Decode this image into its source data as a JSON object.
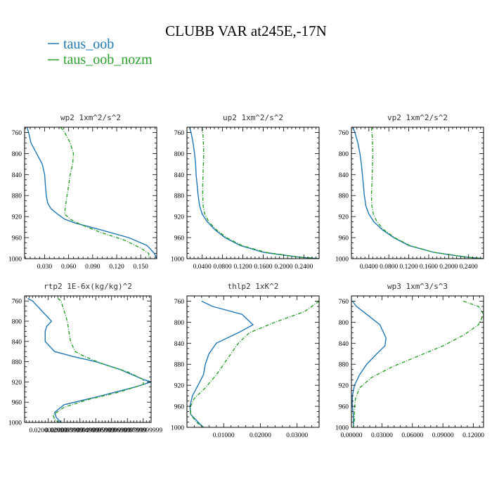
{
  "figure": {
    "title": "CLUBB VAR at245E,-17N",
    "legend": [
      {
        "name": "taus_oob",
        "color": "#1f77b4",
        "dash": "solid"
      },
      {
        "name": "taus_oob_nozm",
        "color": "#2ca02c",
        "dash": "dashdot"
      }
    ],
    "legend_placement": "top-left"
  },
  "chart_data": [
    {
      "type": "line",
      "title": "wp2  1xm^2/s^2",
      "xlim": [
        0.005,
        0.17
      ],
      "ylim": [
        1000,
        750
      ],
      "yticks": [
        760,
        800,
        840,
        880,
        920,
        960,
        1000
      ],
      "xticks": [
        0.03,
        0.06,
        0.09,
        0.12,
        0.15
      ],
      "xtick_labels": [
        "0.030",
        "0.060",
        "0.090",
        "0.120",
        "0.150"
      ],
      "series": [
        {
          "name": "taus_oob",
          "points": [
            [
              0.008,
              750
            ],
            [
              0.01,
              760
            ],
            [
              0.013,
              780
            ],
            [
              0.02,
              800
            ],
            [
              0.027,
              820
            ],
            [
              0.03,
              840
            ],
            [
              0.031,
              860
            ],
            [
              0.032,
              880
            ],
            [
              0.034,
              895
            ],
            [
              0.038,
              905
            ],
            [
              0.046,
              915
            ],
            [
              0.055,
              925
            ],
            [
              0.07,
              933
            ],
            [
              0.1,
              945
            ],
            [
              0.135,
              960
            ],
            [
              0.158,
              975
            ],
            [
              0.167,
              990
            ],
            [
              0.17,
              1000
            ]
          ]
        },
        {
          "name": "taus_oob_nozm",
          "points": [
            [
              0.05,
              750
            ],
            [
              0.055,
              760
            ],
            [
              0.062,
              780
            ],
            [
              0.066,
              800
            ],
            [
              0.065,
              820
            ],
            [
              0.062,
              840
            ],
            [
              0.06,
              860
            ],
            [
              0.058,
              880
            ],
            [
              0.056,
              900
            ],
            [
              0.055,
              915
            ],
            [
              0.062,
              925
            ],
            [
              0.075,
              935
            ],
            [
              0.1,
              950
            ],
            [
              0.13,
              965
            ],
            [
              0.15,
              980
            ],
            [
              0.16,
              990
            ],
            [
              0.16,
              1000
            ]
          ]
        }
      ]
    },
    {
      "type": "line",
      "title": "up2  1xm^2/s^2",
      "xlim": [
        0.01,
        0.27
      ],
      "ylim": [
        1000,
        750
      ],
      "yticks": [
        760,
        800,
        840,
        880,
        920,
        960,
        1000
      ],
      "xticks": [
        0.04,
        0.08,
        0.12,
        0.16,
        0.2,
        0.24
      ],
      "xtick_labels": [
        "0.0400",
        "0.0800",
        "0.1200",
        "0.1600",
        "0.2000",
        "0.2400"
      ],
      "series": [
        {
          "name": "taus_oob",
          "points": [
            [
              0.015,
              750
            ],
            [
              0.018,
              760
            ],
            [
              0.022,
              780
            ],
            [
              0.025,
              800
            ],
            [
              0.027,
              820
            ],
            [
              0.028,
              840
            ],
            [
              0.03,
              860
            ],
            [
              0.032,
              880
            ],
            [
              0.035,
              900
            ],
            [
              0.04,
              915
            ],
            [
              0.05,
              930
            ],
            [
              0.065,
              945
            ],
            [
              0.085,
              960
            ],
            [
              0.115,
              975
            ],
            [
              0.16,
              988
            ],
            [
              0.23,
              997
            ],
            [
              0.27,
              1000
            ]
          ]
        },
        {
          "name": "taus_oob_nozm",
          "points": [
            [
              0.04,
              750
            ],
            [
              0.042,
              770
            ],
            [
              0.043,
              800
            ],
            [
              0.042,
              830
            ],
            [
              0.041,
              860
            ],
            [
              0.041,
              880
            ],
            [
              0.042,
              900
            ],
            [
              0.045,
              915
            ],
            [
              0.053,
              930
            ],
            [
              0.068,
              945
            ],
            [
              0.088,
              960
            ],
            [
              0.118,
              975
            ],
            [
              0.165,
              988
            ],
            [
              0.23,
              997
            ],
            [
              0.27,
              1000
            ]
          ]
        }
      ]
    },
    {
      "type": "line",
      "title": "vp2  1xm^2/s^2",
      "xlim": [
        0.005,
        0.27
      ],
      "ylim": [
        1000,
        750
      ],
      "yticks": [
        760,
        800,
        840,
        880,
        920,
        960,
        1000
      ],
      "xticks": [
        0.04,
        0.08,
        0.12,
        0.16,
        0.2,
        0.24
      ],
      "xtick_labels": [
        "0.0400",
        "0.0800",
        "0.1200",
        "0.1600",
        "0.2000",
        "0.2400"
      ],
      "series": [
        {
          "name": "taus_oob",
          "points": [
            [
              0.008,
              750
            ],
            [
              0.012,
              760
            ],
            [
              0.018,
              780
            ],
            [
              0.022,
              800
            ],
            [
              0.025,
              820
            ],
            [
              0.027,
              840
            ],
            [
              0.029,
              860
            ],
            [
              0.031,
              880
            ],
            [
              0.034,
              900
            ],
            [
              0.04,
              915
            ],
            [
              0.05,
              930
            ],
            [
              0.067,
              945
            ],
            [
              0.09,
              960
            ],
            [
              0.12,
              975
            ],
            [
              0.17,
              988
            ],
            [
              0.235,
              997
            ],
            [
              0.27,
              1000
            ]
          ]
        },
        {
          "name": "taus_oob_nozm",
          "points": [
            [
              0.045,
              750
            ],
            [
              0.047,
              770
            ],
            [
              0.048,
              800
            ],
            [
              0.047,
              830
            ],
            [
              0.046,
              860
            ],
            [
              0.045,
              880
            ],
            [
              0.046,
              900
            ],
            [
              0.049,
              915
            ],
            [
              0.056,
              930
            ],
            [
              0.07,
              945
            ],
            [
              0.092,
              960
            ],
            [
              0.122,
              975
            ],
            [
              0.17,
              988
            ],
            [
              0.235,
              997
            ],
            [
              0.27,
              1000
            ]
          ]
        }
      ]
    },
    {
      "type": "line",
      "title": "rtp2  1E-6x(kg/kg)^2",
      "xlim": [
        0.005,
        0.085
      ],
      "ylim": [
        1000,
        750
      ],
      "yticks": [
        760,
        800,
        840,
        880,
        920,
        960,
        1000
      ],
      "xticks": [
        0.02,
        0.03,
        0.04,
        0.05,
        0.06,
        0.07,
        0.08
      ],
      "xtick_labels": [
        "0.0200000000",
        "0.0299999999",
        "0.0399999999",
        "0.0499999999",
        "0.0599999999",
        "0.0699999999",
        "0.0799999999"
      ],
      "series": [
        {
          "name": "taus_oob",
          "points": [
            [
              0.007,
              755
            ],
            [
              0.01,
              760
            ],
            [
              0.016,
              780
            ],
            [
              0.022,
              800
            ],
            [
              0.019,
              810
            ],
            [
              0.018,
              820
            ],
            [
              0.018,
              840
            ],
            [
              0.024,
              860
            ],
            [
              0.036,
              870
            ],
            [
              0.05,
              880
            ],
            [
              0.065,
              895
            ],
            [
              0.08,
              915
            ],
            [
              0.085,
              920
            ],
            [
              0.075,
              930
            ],
            [
              0.05,
              950
            ],
            [
              0.03,
              965
            ],
            [
              0.024,
              980
            ],
            [
              0.025,
              990
            ],
            [
              0.028,
              1000
            ]
          ]
        },
        {
          "name": "taus_oob_nozm",
          "points": [
            [
              0.026,
              755
            ],
            [
              0.028,
              760
            ],
            [
              0.03,
              780
            ],
            [
              0.032,
              800
            ],
            [
              0.033,
              820
            ],
            [
              0.034,
              840
            ],
            [
              0.037,
              860
            ],
            [
              0.043,
              870
            ],
            [
              0.055,
              885
            ],
            [
              0.07,
              900
            ],
            [
              0.08,
              915
            ],
            [
              0.08,
              925
            ],
            [
              0.065,
              940
            ],
            [
              0.045,
              955
            ],
            [
              0.03,
              970
            ],
            [
              0.023,
              985
            ],
            [
              0.024,
              995
            ],
            [
              0.027,
              1000
            ]
          ]
        }
      ]
    },
    {
      "type": "line",
      "title": "thlp2  1xK^2",
      "xlim": [
        0.0,
        0.036
      ],
      "ylim": [
        1000,
        750
      ],
      "yticks": [
        760,
        800,
        840,
        880,
        920,
        960,
        1000
      ],
      "xticks": [
        0.01,
        0.02,
        0.03
      ],
      "xtick_labels": [
        "0.01000",
        "0.02000",
        "0.03000"
      ],
      "series": [
        {
          "name": "taus_oob",
          "points": [
            [
              0.004,
              760
            ],
            [
              0.007,
              770
            ],
            [
              0.015,
              785
            ],
            [
              0.018,
              805
            ],
            [
              0.014,
              820
            ],
            [
              0.008,
              840
            ],
            [
              0.006,
              860
            ],
            [
              0.005,
              880
            ],
            [
              0.0045,
              900
            ],
            [
              0.003,
              920
            ],
            [
              0.0015,
              940
            ],
            [
              0.0008,
              960
            ],
            [
              0.001,
              975
            ],
            [
              0.003,
              990
            ],
            [
              0.0045,
              1000
            ]
          ]
        },
        {
          "name": "taus_oob_nozm",
          "points": [
            [
              0.036,
              760
            ],
            [
              0.032,
              780
            ],
            [
              0.024,
              800
            ],
            [
              0.017,
              820
            ],
            [
              0.014,
              840
            ],
            [
              0.011,
              870
            ],
            [
              0.008,
              900
            ],
            [
              0.005,
              925
            ],
            [
              0.002,
              945
            ],
            [
              0.001,
              960
            ],
            [
              0.001,
              975
            ],
            [
              0.0025,
              990
            ],
            [
              0.0045,
              1000
            ]
          ]
        }
      ]
    },
    {
      "type": "line",
      "title": "wp3  1xm^3/s^3",
      "xlim": [
        0.0,
        0.13
      ],
      "ylim": [
        1000,
        750
      ],
      "yticks": [
        760,
        800,
        840,
        880,
        920,
        960,
        1000
      ],
      "xticks": [
        0.0,
        0.03,
        0.06,
        0.09,
        0.12
      ],
      "xtick_labels": [
        "0.00000",
        "0.03000",
        "0.06000",
        "0.09000",
        "0.12000"
      ],
      "series": [
        {
          "name": "taus_oob",
          "points": [
            [
              0.001,
              760
            ],
            [
              0.005,
              770
            ],
            [
              0.015,
              785
            ],
            [
              0.028,
              805
            ],
            [
              0.034,
              830
            ],
            [
              0.033,
              845
            ],
            [
              0.025,
              860
            ],
            [
              0.015,
              880
            ],
            [
              0.008,
              900
            ],
            [
              0.003,
              920
            ],
            [
              0.001,
              940
            ],
            [
              0.001,
              960
            ],
            [
              0.002,
              980
            ],
            [
              0.002,
              1000
            ]
          ]
        },
        {
          "name": "taus_oob_nozm",
          "points": [
            [
              0.11,
              760
            ],
            [
              0.125,
              770
            ],
            [
              0.13,
              785
            ],
            [
              0.125,
              805
            ],
            [
              0.11,
              825
            ],
            [
              0.09,
              845
            ],
            [
              0.065,
              865
            ],
            [
              0.04,
              885
            ],
            [
              0.02,
              905
            ],
            [
              0.008,
              925
            ],
            [
              0.004,
              945
            ],
            [
              0.003,
              965
            ],
            [
              0.003,
              985
            ],
            [
              0.002,
              1000
            ]
          ]
        }
      ]
    }
  ]
}
